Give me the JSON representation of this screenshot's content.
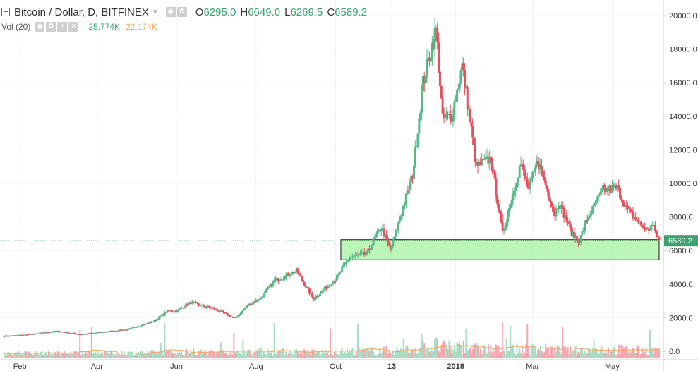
{
  "legend": {
    "symbol": "Bitcoin / Dollar, D, BITFINEX",
    "ohlc": [
      {
        "key": "O",
        "value": "6295.0"
      },
      {
        "key": "H",
        "value": "6649.0"
      },
      {
        "key": "L",
        "value": "6269.5"
      },
      {
        "key": "C",
        "value": "6589.2"
      }
    ],
    "volume_label": "Vol (20)",
    "volume_value": "25.774K",
    "volume_ma_value": "22.174K"
  },
  "colors": {
    "up": "#53b987",
    "down": "#eb4d5c",
    "volume_up": "#a9dcc3",
    "volume_down": "#f5a6ae",
    "volume_ma": "#f7a35c",
    "zone_fill": "#a4f2a0",
    "zone_border": "#1a1a1a",
    "last_price_line": "#3aa371",
    "grid": "#f0f3fa",
    "axis_text": "#333333"
  },
  "chart_data": {
    "type": "candlestick",
    "symbol": "BTCUSD",
    "timeframe": "D",
    "exchange": "BITFINEX",
    "y_axis": {
      "range": [
        0,
        20000
      ],
      "ticks": [
        "20000.0",
        "18000.0",
        "16000.0",
        "14000.0",
        "12000.0",
        "10000.0",
        "8000.0",
        "6000.0",
        "4000.0",
        "2000.0",
        "0.0"
      ]
    },
    "x_axis": {
      "range": [
        "2017-01-20",
        "2018-06-06"
      ],
      "ticks": [
        {
          "label": "Feb",
          "date": "2017-02-01"
        },
        {
          "label": "Apr",
          "date": "2017-04-01"
        },
        {
          "label": "Jun",
          "date": "2017-06-01"
        },
        {
          "label": "Aug",
          "date": "2017-08-01"
        },
        {
          "label": "Oct",
          "date": "2017-10-01"
        },
        {
          "label": "13",
          "date": "2017-11-13"
        },
        {
          "label": "2018",
          "date": "2018-01-01"
        },
        {
          "label": "Mar",
          "date": "2018-03-01"
        },
        {
          "label": "May",
          "date": "2018-05-01"
        }
      ]
    },
    "last_price": {
      "label": "6589.2",
      "value": 6589.2
    },
    "price_path": [
      [
        "2017-01-20",
        900
      ],
      [
        "2017-02-10",
        1000
      ],
      [
        "2017-03-01",
        1200
      ],
      [
        "2017-03-20",
        1000
      ],
      [
        "2017-04-01",
        1100
      ],
      [
        "2017-04-25",
        1300
      ],
      [
        "2017-05-15",
        1800
      ],
      [
        "2017-05-25",
        2400
      ],
      [
        "2017-06-01",
        2400
      ],
      [
        "2017-06-12",
        2900
      ],
      [
        "2017-07-01",
        2500
      ],
      [
        "2017-07-16",
        1950
      ],
      [
        "2017-07-25",
        2700
      ],
      [
        "2017-08-05",
        3200
      ],
      [
        "2017-08-15",
        4200
      ],
      [
        "2017-09-01",
        4800
      ],
      [
        "2017-09-14",
        3100
      ],
      [
        "2017-09-25",
        3900
      ],
      [
        "2017-10-01",
        4300
      ],
      [
        "2017-10-12",
        5600
      ],
      [
        "2017-10-25",
        5800
      ],
      [
        "2017-11-05",
        7400
      ],
      [
        "2017-11-12",
        6000
      ],
      [
        "2017-11-20",
        8100
      ],
      [
        "2017-11-29",
        10500
      ],
      [
        "2017-12-07",
        16000
      ],
      [
        "2017-12-17",
        19200
      ],
      [
        "2017-12-22",
        13800
      ],
      [
        "2017-12-29",
        14000
      ],
      [
        "2018-01-06",
        17000
      ],
      [
        "2018-01-17",
        11000
      ],
      [
        "2018-01-28",
        11500
      ],
      [
        "2018-02-06",
        7000
      ],
      [
        "2018-02-20",
        11200
      ],
      [
        "2018-02-26",
        9600
      ],
      [
        "2018-03-05",
        11400
      ],
      [
        "2018-03-18",
        8200
      ],
      [
        "2018-03-21",
        8900
      ],
      [
        "2018-04-01",
        6900
      ],
      [
        "2018-04-06",
        6600
      ],
      [
        "2018-04-12",
        7900
      ],
      [
        "2018-04-24",
        9600
      ],
      [
        "2018-05-05",
        9700
      ],
      [
        "2018-05-12",
        8500
      ],
      [
        "2018-05-23",
        7500
      ],
      [
        "2018-05-28",
        7200
      ],
      [
        "2018-06-01",
        7500
      ],
      [
        "2018-06-06",
        6589
      ]
    ],
    "zone": {
      "from": "2017-10-05",
      "to": "2018-06-06",
      "low": 5450,
      "high": 6650
    },
    "volume": {
      "label": "Vol (20)",
      "last": "25.774K",
      "ma": "22.174K"
    }
  }
}
